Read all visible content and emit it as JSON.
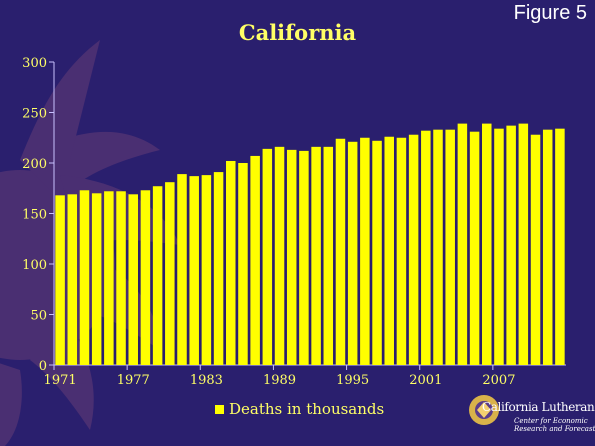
{
  "figure_label": "Figure 5",
  "logo": {
    "name": "California Lutheran",
    "line1": "Center for Economic",
    "line2": "Research and Forecasting"
  },
  "colors": {
    "background": "#2a1f6e",
    "bar": "#ffff00",
    "text": "#ffff66",
    "watermark": "#4a2f72"
  },
  "chart_data": {
    "type": "bar",
    "title": "California",
    "xlabel": "",
    "ylabel": "",
    "ylim": [
      0,
      300
    ],
    "yticks": [
      0,
      50,
      100,
      150,
      200,
      250,
      300
    ],
    "xtick_labels": [
      "1971",
      "1977",
      "1983",
      "1989",
      "1995",
      "2001",
      "2007"
    ],
    "grid": false,
    "legend": "bottom",
    "categories": [
      "1971",
      "1972",
      "1973",
      "1974",
      "1975",
      "1976",
      "1977",
      "1978",
      "1979",
      "1980",
      "1981",
      "1982",
      "1983",
      "1984",
      "1985",
      "1986",
      "1987",
      "1988",
      "1989",
      "1990",
      "1991",
      "1992",
      "1993",
      "1994",
      "1995",
      "1996",
      "1997",
      "1998",
      "1999",
      "2000",
      "2001",
      "2002",
      "2003",
      "2004",
      "2005",
      "2006",
      "2007",
      "2008",
      "2009",
      "2010",
      "2011",
      "2012"
    ],
    "series": [
      {
        "name": "Deaths in thousands",
        "values": [
          168,
          169,
          173,
          170,
          172,
          172,
          169,
          173,
          177,
          181,
          189,
          187,
          188,
          191,
          202,
          200,
          207,
          214,
          216,
          213,
          212,
          216,
          216,
          224,
          221,
          225,
          222,
          226,
          225,
          228,
          232,
          233,
          233,
          239,
          231,
          239,
          234,
          237,
          239,
          228,
          233,
          234
        ]
      }
    ]
  }
}
